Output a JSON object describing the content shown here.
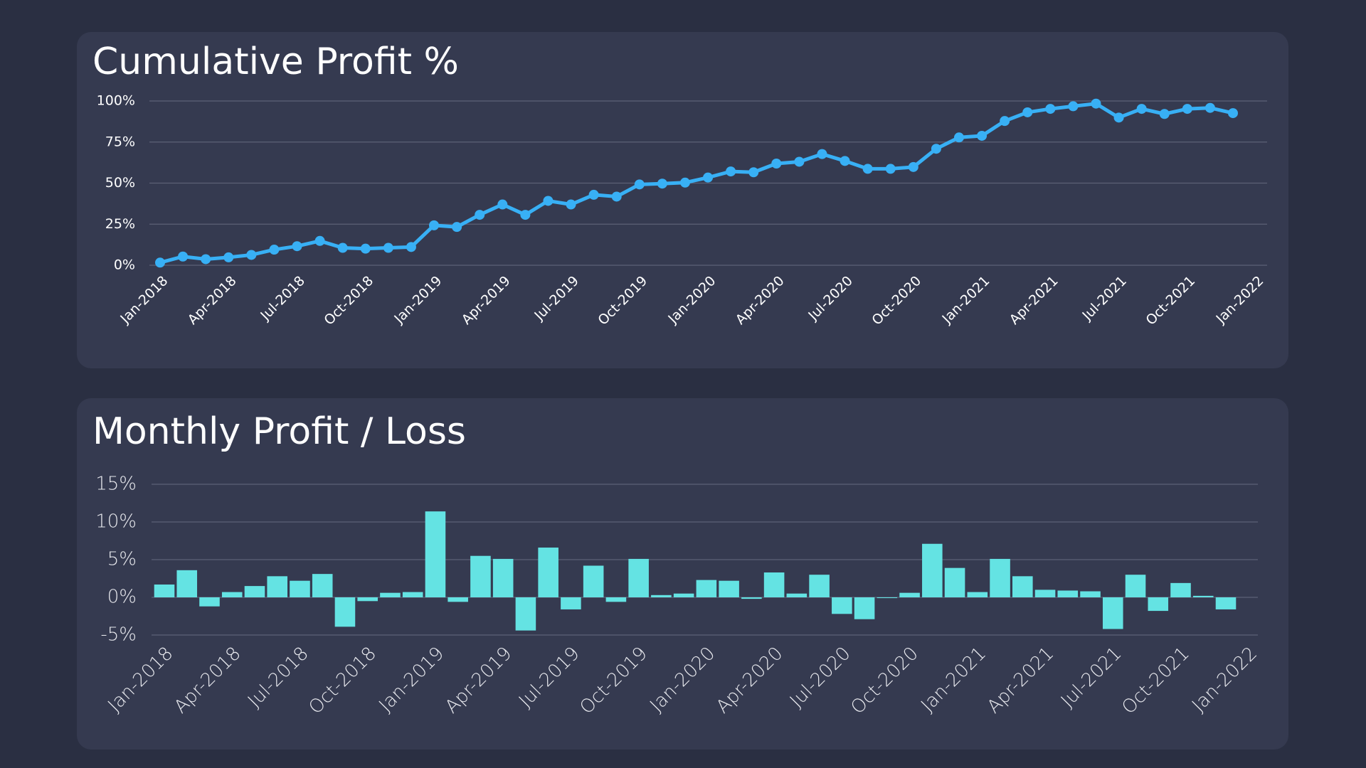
{
  "chart_data": [
    {
      "type": "line",
      "title": "Cumulative Profit %",
      "color": "#38b0f5",
      "grid": true,
      "x": [
        "2018-01",
        "2018-02",
        "2018-03",
        "2018-04",
        "2018-05",
        "2018-06",
        "2018-07",
        "2018-08",
        "2018-09",
        "2018-10",
        "2018-11",
        "2018-12",
        "2019-01",
        "2019-02",
        "2019-03",
        "2019-04",
        "2019-05",
        "2019-06",
        "2019-07",
        "2019-08",
        "2019-09",
        "2019-10",
        "2019-11",
        "2019-12",
        "2020-01",
        "2020-02",
        "2020-03",
        "2020-04",
        "2020-05",
        "2020-06",
        "2020-07",
        "2020-08",
        "2020-09",
        "2020-10",
        "2020-11",
        "2020-12",
        "2021-01",
        "2021-02",
        "2021-03",
        "2021-04",
        "2021-05",
        "2021-06",
        "2021-07",
        "2021-08",
        "2021-09",
        "2021-10",
        "2021-11",
        "2021-12"
      ],
      "values": [
        1.6,
        5.3,
        3.7,
        4.8,
        6.3,
        9.5,
        11.6,
        14.8,
        10.6,
        10.1,
        10.6,
        11.1,
        24.3,
        23.3,
        30.7,
        37.0,
        30.7,
        39.2,
        37.0,
        42.9,
        41.8,
        49.2,
        49.7,
        50.3,
        53.4,
        57.1,
        56.6,
        61.9,
        63.0,
        67.7,
        63.5,
        58.7,
        58.7,
        59.8,
        70.9,
        77.8,
        78.8,
        87.8,
        93.1,
        95.2,
        96.8,
        98.4,
        89.9,
        95.2,
        92.1,
        95.2,
        95.8,
        92.6
      ],
      "xlim": [
        "2018-01",
        "2021-12"
      ],
      "xticks": [
        {
          "value": "2018-01",
          "label": "Jan-2018"
        },
        {
          "value": "2018-04",
          "label": "Apr-2018"
        },
        {
          "value": "2018-07",
          "label": "Jul-2018"
        },
        {
          "value": "2018-10",
          "label": "Oct-2018"
        },
        {
          "value": "2019-01",
          "label": "Jan-2019"
        },
        {
          "value": "2019-04",
          "label": "Apr-2019"
        },
        {
          "value": "2019-07",
          "label": "Jul-2019"
        },
        {
          "value": "2019-10",
          "label": "Oct-2019"
        },
        {
          "value": "2020-01",
          "label": "Jan-2020"
        },
        {
          "value": "2020-04",
          "label": "Apr-2020"
        },
        {
          "value": "2020-07",
          "label": "Jul-2020"
        },
        {
          "value": "2020-10",
          "label": "Oct-2020"
        },
        {
          "value": "2021-01",
          "label": "Jan-2021"
        },
        {
          "value": "2021-04",
          "label": "Apr-2021"
        },
        {
          "value": "2021-07",
          "label": "Jul-2021"
        },
        {
          "value": "2021-10",
          "label": "Oct-2021"
        },
        {
          "value": "2022-01",
          "label": "Jan-2022"
        }
      ],
      "ylim": [
        0,
        100
      ],
      "yticks": [
        {
          "value": 0,
          "label": "0%"
        },
        {
          "value": 25,
          "label": "25%"
        },
        {
          "value": 50,
          "label": "50%"
        },
        {
          "value": 75,
          "label": "75%"
        },
        {
          "value": 100,
          "label": "100%"
        }
      ]
    },
    {
      "type": "bar",
      "title": "Monthly Profit / Loss",
      "color": "#64e3e3",
      "grid": true,
      "x": [
        "2018-01",
        "2018-02",
        "2018-03",
        "2018-04",
        "2018-05",
        "2018-06",
        "2018-07",
        "2018-08",
        "2018-09",
        "2018-10",
        "2018-11",
        "2018-12",
        "2019-01",
        "2019-02",
        "2019-03",
        "2019-04",
        "2019-05",
        "2019-06",
        "2019-07",
        "2019-08",
        "2019-09",
        "2019-10",
        "2019-11",
        "2019-12",
        "2020-01",
        "2020-02",
        "2020-03",
        "2020-04",
        "2020-05",
        "2020-06",
        "2020-07",
        "2020-08",
        "2020-09",
        "2020-10",
        "2020-11",
        "2020-12",
        "2021-01",
        "2021-02",
        "2021-03",
        "2021-04",
        "2021-05",
        "2021-06",
        "2021-07",
        "2021-08",
        "2021-09",
        "2021-10",
        "2021-11",
        "2021-12"
      ],
      "values": [
        1.7,
        3.6,
        -1.2,
        0.7,
        1.5,
        2.8,
        2.2,
        3.1,
        -3.9,
        -0.5,
        0.6,
        0.7,
        11.4,
        -0.6,
        5.5,
        5.1,
        -4.4,
        6.6,
        -1.6,
        4.2,
        -0.6,
        5.1,
        0.3,
        0.5,
        2.3,
        2.2,
        -0.2,
        3.3,
        0.5,
        3.0,
        -2.2,
        -2.9,
        -0.1,
        0.6,
        7.1,
        3.9,
        0.7,
        5.1,
        2.8,
        1.0,
        0.9,
        0.8,
        -4.2,
        3.0,
        -1.8,
        1.9,
        0.2,
        -1.6
      ],
      "xlim": [
        "2018-01",
        "2021-12"
      ],
      "xticks": [
        {
          "value": "2018-01",
          "label": "Jan-2018"
        },
        {
          "value": "2018-04",
          "label": "Apr-2018"
        },
        {
          "value": "2018-07",
          "label": "Jul-2018"
        },
        {
          "value": "2018-10",
          "label": "Oct-2018"
        },
        {
          "value": "2019-01",
          "label": "Jan-2019"
        },
        {
          "value": "2019-04",
          "label": "Apr-2019"
        },
        {
          "value": "2019-07",
          "label": "Jul-2019"
        },
        {
          "value": "2019-10",
          "label": "Oct-2019"
        },
        {
          "value": "2020-01",
          "label": "Jan-2020"
        },
        {
          "value": "2020-04",
          "label": "Apr-2020"
        },
        {
          "value": "2020-07",
          "label": "Jul-2020"
        },
        {
          "value": "2020-10",
          "label": "Oct-2020"
        },
        {
          "value": "2021-01",
          "label": "Jan-2021"
        },
        {
          "value": "2021-04",
          "label": "Apr-2021"
        },
        {
          "value": "2021-07",
          "label": "Jul-2021"
        },
        {
          "value": "2021-10",
          "label": "Oct-2021"
        },
        {
          "value": "2022-01",
          "label": "Jan-2022"
        }
      ],
      "ylim": [
        -5,
        15
      ],
      "yticks": [
        {
          "value": -5,
          "label": "-5%"
        },
        {
          "value": 0,
          "label": "0%"
        },
        {
          "value": 5,
          "label": "5%"
        },
        {
          "value": 10,
          "label": "10%"
        },
        {
          "value": 15,
          "label": "15%"
        }
      ]
    }
  ]
}
